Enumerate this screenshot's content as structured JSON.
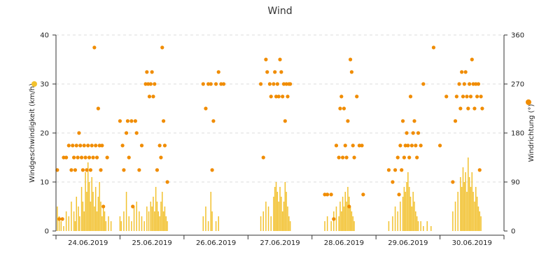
{
  "chart_data": {
    "type": "bar",
    "title": "Wind",
    "ylabel_left": "Windgeschwindigkeit (km/h)",
    "ylabel_right": "Windrichtung (°)",
    "ylim_left": [
      0,
      40
    ],
    "ylim_right": [
      0,
      360
    ],
    "yticks_left": [
      "0",
      "10",
      "20",
      "30",
      "40"
    ],
    "yticks_right": [
      "0",
      "90",
      "180",
      "270",
      "360"
    ],
    "xlim_days": [
      0,
      7
    ],
    "categories": [
      "24.06.2019",
      "25.06.2019",
      "26.06.2019",
      "27.06.2019",
      "28.06.2019",
      "29.06.2019",
      "30.06.2019"
    ],
    "grid": true,
    "series": [
      {
        "type": "bar",
        "axis": "left",
        "color": "#f2c12e",
        "values": [
          [
            0.02,
            5
          ],
          [
            0.05,
            3
          ],
          [
            0.08,
            2
          ],
          [
            0.12,
            1
          ],
          [
            0.16,
            4
          ],
          [
            0.2,
            3
          ],
          [
            0.24,
            6
          ],
          [
            0.28,
            4
          ],
          [
            0.3,
            2
          ],
          [
            0.32,
            7
          ],
          [
            0.35,
            5
          ],
          [
            0.37,
            3
          ],
          [
            0.4,
            9
          ],
          [
            0.42,
            6
          ],
          [
            0.44,
            4
          ],
          [
            0.46,
            12
          ],
          [
            0.48,
            8
          ],
          [
            0.5,
            14
          ],
          [
            0.52,
            10
          ],
          [
            0.54,
            6
          ],
          [
            0.56,
            11
          ],
          [
            0.58,
            8
          ],
          [
            0.6,
            5
          ],
          [
            0.62,
            9
          ],
          [
            0.64,
            4
          ],
          [
            0.66,
            7
          ],
          [
            0.68,
            10
          ],
          [
            0.7,
            6
          ],
          [
            0.72,
            3
          ],
          [
            0.74,
            5
          ],
          [
            0.76,
            4
          ],
          [
            0.78,
            2
          ],
          [
            0.82,
            3
          ],
          [
            0.86,
            2
          ],
          [
            1.0,
            3
          ],
          [
            1.02,
            2
          ],
          [
            1.06,
            4
          ],
          [
            1.1,
            8
          ],
          [
            1.14,
            3
          ],
          [
            1.18,
            2
          ],
          [
            1.22,
            5
          ],
          [
            1.26,
            6
          ],
          [
            1.3,
            4
          ],
          [
            1.34,
            3
          ],
          [
            1.38,
            2
          ],
          [
            1.42,
            5
          ],
          [
            1.45,
            4
          ],
          [
            1.48,
            6
          ],
          [
            1.5,
            5
          ],
          [
            1.52,
            7
          ],
          [
            1.54,
            4
          ],
          [
            1.56,
            9
          ],
          [
            1.58,
            6
          ],
          [
            1.6,
            4
          ],
          [
            1.62,
            3
          ],
          [
            1.64,
            6
          ],
          [
            1.66,
            8
          ],
          [
            1.68,
            4
          ],
          [
            1.7,
            5
          ],
          [
            1.72,
            3
          ],
          [
            1.74,
            2
          ],
          [
            2.3,
            3
          ],
          [
            2.34,
            5
          ],
          [
            2.38,
            2
          ],
          [
            2.42,
            8
          ],
          [
            2.44,
            4
          ],
          [
            2.5,
            2
          ],
          [
            2.54,
            3
          ],
          [
            3.2,
            3
          ],
          [
            3.24,
            4
          ],
          [
            3.28,
            6
          ],
          [
            3.32,
            5
          ],
          [
            3.36,
            3
          ],
          [
            3.4,
            7
          ],
          [
            3.42,
            9
          ],
          [
            3.44,
            10
          ],
          [
            3.46,
            8
          ],
          [
            3.48,
            6
          ],
          [
            3.5,
            9
          ],
          [
            3.52,
            7
          ],
          [
            3.54,
            4
          ],
          [
            3.56,
            6
          ],
          [
            3.58,
            10
          ],
          [
            3.6,
            8
          ],
          [
            3.62,
            5
          ],
          [
            3.64,
            3
          ],
          [
            3.66,
            2
          ],
          [
            4.2,
            2
          ],
          [
            4.24,
            3
          ],
          [
            4.3,
            2
          ],
          [
            4.34,
            4
          ],
          [
            4.38,
            5
          ],
          [
            4.42,
            3
          ],
          [
            4.44,
            6
          ],
          [
            4.46,
            4
          ],
          [
            4.48,
            7
          ],
          [
            4.5,
            5
          ],
          [
            4.52,
            8
          ],
          [
            4.54,
            6
          ],
          [
            4.56,
            9
          ],
          [
            4.58,
            7
          ],
          [
            4.6,
            5
          ],
          [
            4.62,
            4
          ],
          [
            4.64,
            3
          ],
          [
            4.66,
            2
          ],
          [
            5.2,
            2
          ],
          [
            5.26,
            3
          ],
          [
            5.3,
            5
          ],
          [
            5.34,
            4
          ],
          [
            5.38,
            6
          ],
          [
            5.42,
            7
          ],
          [
            5.44,
            9
          ],
          [
            5.46,
            8
          ],
          [
            5.48,
            10
          ],
          [
            5.5,
            12
          ],
          [
            5.52,
            9
          ],
          [
            5.54,
            7
          ],
          [
            5.56,
            5
          ],
          [
            5.58,
            8
          ],
          [
            5.6,
            6
          ],
          [
            5.62,
            4
          ],
          [
            5.64,
            3
          ],
          [
            5.66,
            2
          ],
          [
            5.7,
            2
          ],
          [
            5.74,
            1
          ],
          [
            5.8,
            2
          ],
          [
            5.86,
            1
          ],
          [
            6.2,
            4
          ],
          [
            6.24,
            6
          ],
          [
            6.28,
            8
          ],
          [
            6.32,
            11
          ],
          [
            6.34,
            9
          ],
          [
            6.36,
            13
          ],
          [
            6.38,
            10
          ],
          [
            6.4,
            12
          ],
          [
            6.42,
            8
          ],
          [
            6.44,
            15
          ],
          [
            6.46,
            11
          ],
          [
            6.48,
            9
          ],
          [
            6.5,
            12
          ],
          [
            6.52,
            8
          ],
          [
            6.54,
            6
          ],
          [
            6.56,
            9
          ],
          [
            6.58,
            7
          ],
          [
            6.6,
            5
          ],
          [
            6.62,
            4
          ],
          [
            6.64,
            3
          ]
        ]
      },
      {
        "type": "scatter",
        "axis": "right",
        "color": "#f08c00",
        "points": [
          [
            0.02,
            112
          ],
          [
            0.05,
            22
          ],
          [
            0.1,
            22
          ],
          [
            0.12,
            135
          ],
          [
            0.16,
            135
          ],
          [
            0.2,
            157
          ],
          [
            0.24,
            112
          ],
          [
            0.26,
            157
          ],
          [
            0.28,
            135
          ],
          [
            0.3,
            112
          ],
          [
            0.32,
            157
          ],
          [
            0.34,
            135
          ],
          [
            0.36,
            180
          ],
          [
            0.38,
            157
          ],
          [
            0.4,
            135
          ],
          [
            0.42,
            112
          ],
          [
            0.44,
            157
          ],
          [
            0.46,
            135
          ],
          [
            0.48,
            112
          ],
          [
            0.5,
            157
          ],
          [
            0.52,
            135
          ],
          [
            0.54,
            112
          ],
          [
            0.56,
            157
          ],
          [
            0.58,
            135
          ],
          [
            0.6,
            337
          ],
          [
            0.62,
            157
          ],
          [
            0.64,
            135
          ],
          [
            0.66,
            225
          ],
          [
            0.68,
            157
          ],
          [
            0.7,
            112
          ],
          [
            0.72,
            157
          ],
          [
            0.74,
            45
          ],
          [
            0.8,
            135
          ],
          [
            1.0,
            202
          ],
          [
            1.04,
            157
          ],
          [
            1.06,
            112
          ],
          [
            1.1,
            180
          ],
          [
            1.12,
            202
          ],
          [
            1.14,
            135
          ],
          [
            1.18,
            202
          ],
          [
            1.2,
            45
          ],
          [
            1.24,
            202
          ],
          [
            1.26,
            180
          ],
          [
            1.3,
            112
          ],
          [
            1.34,
            157
          ],
          [
            1.4,
            270
          ],
          [
            1.42,
            292
          ],
          [
            1.44,
            270
          ],
          [
            1.46,
            247
          ],
          [
            1.48,
            270
          ],
          [
            1.5,
            292
          ],
          [
            1.52,
            247
          ],
          [
            1.54,
            270
          ],
          [
            1.58,
            112
          ],
          [
            1.62,
            157
          ],
          [
            1.64,
            135
          ],
          [
            1.66,
            337
          ],
          [
            1.68,
            202
          ],
          [
            1.7,
            157
          ],
          [
            1.74,
            90
          ],
          [
            2.3,
            270
          ],
          [
            2.34,
            225
          ],
          [
            2.38,
            270
          ],
          [
            2.42,
            270
          ],
          [
            2.44,
            112
          ],
          [
            2.46,
            202
          ],
          [
            2.5,
            270
          ],
          [
            2.54,
            292
          ],
          [
            2.58,
            270
          ],
          [
            2.62,
            270
          ],
          [
            3.2,
            270
          ],
          [
            3.24,
            135
          ],
          [
            3.28,
            315
          ],
          [
            3.3,
            292
          ],
          [
            3.34,
            270
          ],
          [
            3.36,
            247
          ],
          [
            3.4,
            270
          ],
          [
            3.42,
            292
          ],
          [
            3.44,
            247
          ],
          [
            3.46,
            270
          ],
          [
            3.48,
            247
          ],
          [
            3.5,
            315
          ],
          [
            3.52,
            292
          ],
          [
            3.54,
            247
          ],
          [
            3.56,
            270
          ],
          [
            3.58,
            202
          ],
          [
            3.6,
            270
          ],
          [
            3.62,
            247
          ],
          [
            3.64,
            270
          ],
          [
            3.66,
            270
          ],
          [
            4.2,
            67
          ],
          [
            4.24,
            67
          ],
          [
            4.3,
            67
          ],
          [
            4.34,
            22
          ],
          [
            4.38,
            157
          ],
          [
            4.42,
            135
          ],
          [
            4.44,
            225
          ],
          [
            4.46,
            247
          ],
          [
            4.48,
            135
          ],
          [
            4.5,
            225
          ],
          [
            4.52,
            157
          ],
          [
            4.54,
            135
          ],
          [
            4.56,
            202
          ],
          [
            4.58,
            45
          ],
          [
            4.6,
            315
          ],
          [
            4.62,
            292
          ],
          [
            4.64,
            157
          ],
          [
            4.66,
            135
          ],
          [
            4.7,
            247
          ],
          [
            4.74,
            157
          ],
          [
            4.78,
            157
          ],
          [
            4.8,
            67
          ],
          [
            5.2,
            112
          ],
          [
            5.26,
            90
          ],
          [
            5.3,
            112
          ],
          [
            5.34,
            135
          ],
          [
            5.36,
            67
          ],
          [
            5.38,
            157
          ],
          [
            5.4,
            112
          ],
          [
            5.42,
            202
          ],
          [
            5.44,
            135
          ],
          [
            5.46,
            157
          ],
          [
            5.48,
            180
          ],
          [
            5.5,
            157
          ],
          [
            5.52,
            135
          ],
          [
            5.54,
            247
          ],
          [
            5.56,
            157
          ],
          [
            5.58,
            180
          ],
          [
            5.6,
            202
          ],
          [
            5.62,
            157
          ],
          [
            5.64,
            135
          ],
          [
            5.66,
            180
          ],
          [
            5.7,
            157
          ],
          [
            5.74,
            270
          ],
          [
            5.9,
            337
          ],
          [
            6.0,
            157
          ],
          [
            6.1,
            247
          ],
          [
            6.2,
            90
          ],
          [
            6.24,
            202
          ],
          [
            6.26,
            247
          ],
          [
            6.3,
            270
          ],
          [
            6.32,
            225
          ],
          [
            6.34,
            292
          ],
          [
            6.36,
            247
          ],
          [
            6.38,
            270
          ],
          [
            6.4,
            292
          ],
          [
            6.42,
            247
          ],
          [
            6.44,
            225
          ],
          [
            6.46,
            270
          ],
          [
            6.48,
            247
          ],
          [
            6.5,
            315
          ],
          [
            6.52,
            270
          ],
          [
            6.54,
            225
          ],
          [
            6.56,
            270
          ],
          [
            6.58,
            247
          ],
          [
            6.6,
            270
          ],
          [
            6.62,
            112
          ],
          [
            6.64,
            247
          ],
          [
            6.66,
            225
          ]
        ]
      }
    ]
  }
}
